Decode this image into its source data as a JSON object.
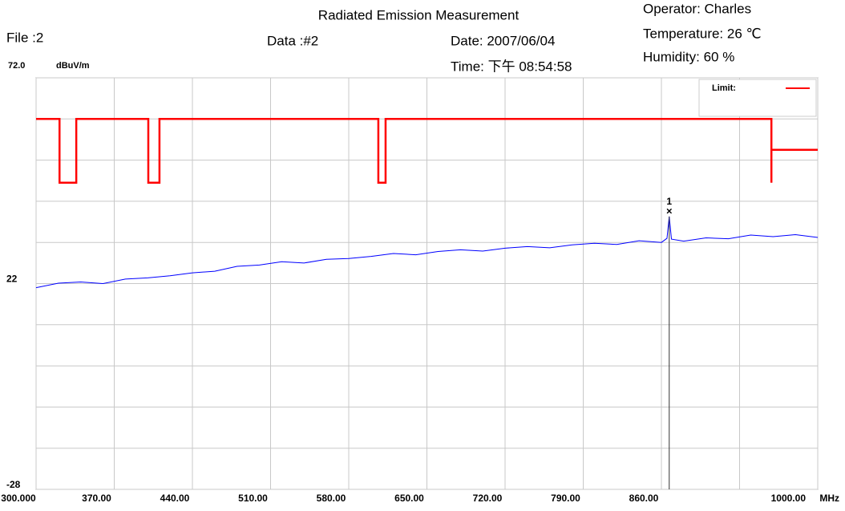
{
  "chart_data": {
    "type": "line",
    "title": "Radiated Emission Measurement",
    "header": {
      "file": "File :2",
      "data": "Data :#2",
      "date": "Date: 2007/06/04",
      "time": "Time: 下午 08:54:58",
      "operator": "Operator:  Charles",
      "temperature": "Temperature:  26 ℃",
      "humidity": "Humidity:  60 %"
    },
    "y_unit": "dBuV/m",
    "x_unit": "MHz",
    "xlim": [
      300,
      1000
    ],
    "ylim": [
      -28,
      72
    ],
    "xticks": [
      {
        "value": 300,
        "label": "300.000"
      },
      {
        "value": 370,
        "label": "370.00"
      },
      {
        "value": 440,
        "label": "440.00"
      },
      {
        "value": 510,
        "label": "510.00"
      },
      {
        "value": 580,
        "label": "580.00"
      },
      {
        "value": 650,
        "label": "650.00"
      },
      {
        "value": 720,
        "label": "720.00"
      },
      {
        "value": 790,
        "label": "790.00"
      },
      {
        "value": 860,
        "label": "860.00"
      },
      {
        "value": 930,
        "label": null
      },
      {
        "value": 1000,
        "label": "1000.00"
      }
    ],
    "yticks": [
      {
        "value": 72,
        "label": "72.0"
      },
      {
        "value": 62,
        "label": null
      },
      {
        "value": 52,
        "label": null
      },
      {
        "value": 42,
        "label": null
      },
      {
        "value": 32,
        "label": null
      },
      22,
      {
        "value": 12,
        "label": null
      },
      {
        "value": 2,
        "label": null
      },
      {
        "value": -8,
        "label": null
      },
      {
        "value": -18,
        "label": null
      },
      -28
    ],
    "grid": true,
    "legend": "top-right",
    "series": [
      {
        "name": "Limit:",
        "color": "#ff0000",
        "x": [
          300,
          321,
          321,
          336,
          336,
          400.5,
          400.5,
          410.5,
          410.5,
          606.5,
          606.5,
          613,
          613,
          958.5,
          958.5,
          958.5,
          1000
        ],
        "values": [
          62,
          62,
          46.5,
          46.5,
          62,
          62,
          46.5,
          46.5,
          62,
          62,
          46.5,
          46.5,
          62,
          62,
          46.5,
          54.5,
          54.5
        ]
      },
      {
        "name": null,
        "color": "#0000ff",
        "x": [
          300,
          320,
          340,
          360,
          380,
          400,
          420,
          440,
          460,
          480,
          500,
          520,
          540,
          560,
          580,
          600,
          620,
          640,
          660,
          680,
          700,
          720,
          740,
          760,
          780,
          800,
          820,
          840,
          860,
          865,
          867,
          869,
          880,
          900,
          920,
          940,
          960,
          980,
          1000
        ],
        "values": [
          21.0,
          22.1,
          22.4,
          22.0,
          23.1,
          23.4,
          23.9,
          24.6,
          25.0,
          26.2,
          26.5,
          27.3,
          27.0,
          27.9,
          28.1,
          28.6,
          29.3,
          29.0,
          29.8,
          30.2,
          29.9,
          30.6,
          31.0,
          30.7,
          31.4,
          31.8,
          31.5,
          32.4,
          32.0,
          33.0,
          38.3,
          32.8,
          32.3,
          33.1,
          32.9,
          33.8,
          33.4,
          33.9,
          33.2
        ]
      }
    ],
    "markers": [
      {
        "label": "1",
        "x": 867,
        "value": 38.3
      }
    ]
  }
}
